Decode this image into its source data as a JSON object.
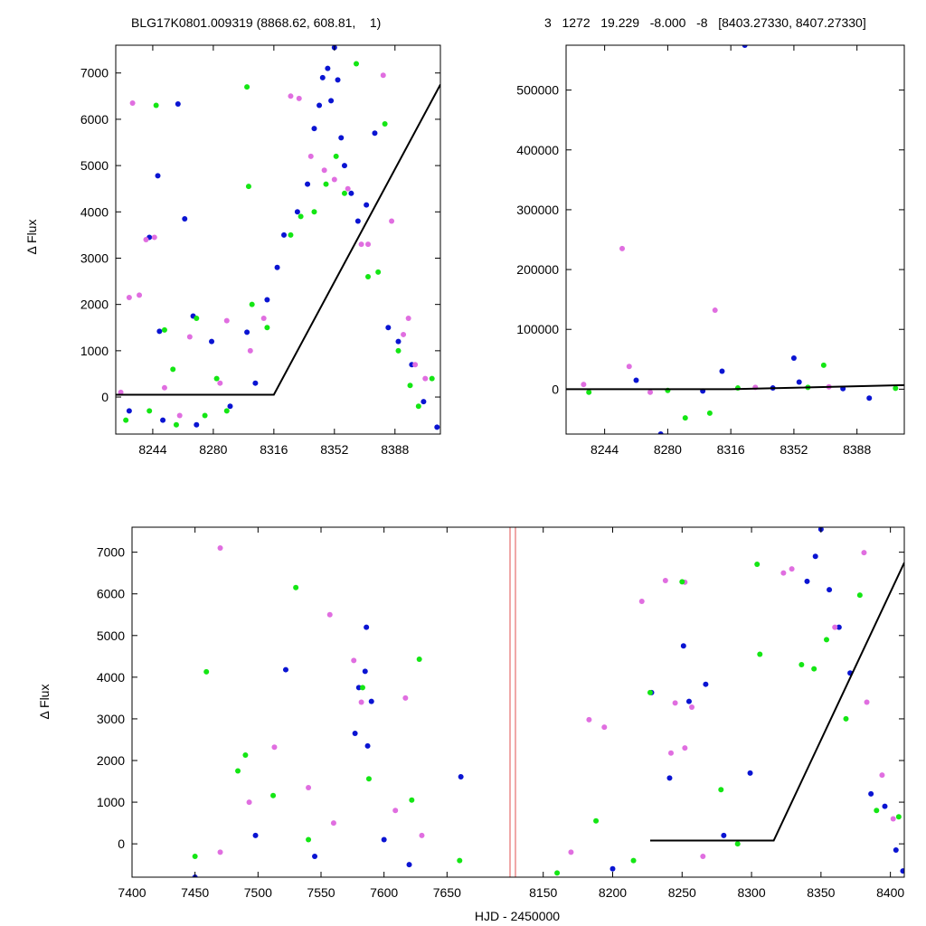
{
  "header": {
    "left": "BLG17K0801.009319 (8868.62, 608.81,    1)",
    "right": "3   1272   19.229   -8.000   -8   [8403.27330, 8407.27330]"
  },
  "colors": {
    "blue": "#0a14d2",
    "magenta": "#e06ee0",
    "green": "#14e614",
    "model": "#000000",
    "gap": "#e05050"
  },
  "chart_data": [
    {
      "type": "scatter",
      "ylabel": "Δ Flux",
      "xlim": [
        8222,
        8415
      ],
      "ylim": [
        -800,
        7600
      ],
      "xticks": [
        8244,
        8280,
        8316,
        8352,
        8388
      ],
      "yticks": [
        0,
        1000,
        2000,
        3000,
        4000,
        5000,
        6000,
        7000
      ],
      "model": [
        [
          8222,
          50
        ],
        [
          8316,
          50
        ],
        [
          8415,
          6750
        ]
      ],
      "series": [
        {
          "color": "blue",
          "points": [
            [
              8242,
              3450
            ],
            [
              8247,
              4780
            ],
            [
              8259,
              6330
            ],
            [
              8263,
              3850
            ],
            [
              8248,
              1420
            ],
            [
              8268,
              1750
            ],
            [
              8279,
              1200
            ],
            [
              8300,
              1400
            ],
            [
              8312,
              2100
            ],
            [
              8318,
              2800
            ],
            [
              8322,
              3500
            ],
            [
              8330,
              4000
            ],
            [
              8336,
              4600
            ],
            [
              8340,
              5800
            ],
            [
              8343,
              6300
            ],
            [
              8345,
              6900
            ],
            [
              8348,
              7100
            ],
            [
              8350,
              6400
            ],
            [
              8352,
              7550
            ],
            [
              8354,
              6850
            ],
            [
              8356,
              5600
            ],
            [
              8358,
              5000
            ],
            [
              8362,
              4400
            ],
            [
              8366,
              3800
            ],
            [
              8371,
              4150
            ],
            [
              8376,
              5700
            ],
            [
              8384,
              1500
            ],
            [
              8390,
              1200
            ],
            [
              8398,
              700
            ],
            [
              8405,
              -100
            ],
            [
              8413,
              -650
            ],
            [
              8230,
              -300
            ],
            [
              8250,
              -500
            ],
            [
              8270,
              -600
            ],
            [
              8290,
              -200
            ],
            [
              8305,
              300
            ]
          ]
        },
        {
          "color": "magenta",
          "points": [
            [
              8232,
              6350
            ],
            [
              8240,
              3400
            ],
            [
              8236,
              2200
            ],
            [
              8230,
              2150
            ],
            [
              8245,
              3450
            ],
            [
              8251,
              200
            ],
            [
              8266,
              1300
            ],
            [
              8288,
              1650
            ],
            [
              8302,
              1000
            ],
            [
              8310,
              1700
            ],
            [
              8326,
              6500
            ],
            [
              8331,
              6450
            ],
            [
              8338,
              5200
            ],
            [
              8346,
              4900
            ],
            [
              8352,
              4700
            ],
            [
              8360,
              4500
            ],
            [
              8368,
              3300
            ],
            [
              8381,
              6950
            ],
            [
              8372,
              3300
            ],
            [
              8386,
              3800
            ],
            [
              8393,
              1350
            ],
            [
              8396,
              1700
            ],
            [
              8400,
              700
            ],
            [
              8406,
              400
            ],
            [
              8225,
              100
            ],
            [
              8260,
              -400
            ],
            [
              8284,
              300
            ]
          ]
        },
        {
          "color": "green",
          "points": [
            [
              8246,
              6300
            ],
            [
              8251,
              1450
            ],
            [
              8256,
              600
            ],
            [
              8270,
              1700
            ],
            [
              8282,
              400
            ],
            [
              8300,
              6700
            ],
            [
              8301,
              4550
            ],
            [
              8303,
              2000
            ],
            [
              8312,
              1500
            ],
            [
              8326,
              3500
            ],
            [
              8332,
              3900
            ],
            [
              8340,
              4000
            ],
            [
              8347,
              4600
            ],
            [
              8353,
              5200
            ],
            [
              8358,
              4400
            ],
            [
              8365,
              7200
            ],
            [
              8372,
              2600
            ],
            [
              8378,
              2700
            ],
            [
              8382,
              5900
            ],
            [
              8390,
              1000
            ],
            [
              8397,
              250
            ],
            [
              8402,
              -200
            ],
            [
              8410,
              400
            ],
            [
              8228,
              -500
            ],
            [
              8242,
              -300
            ],
            [
              8258,
              -600
            ],
            [
              8275,
              -400
            ],
            [
              8288,
              -300
            ]
          ]
        }
      ]
    },
    {
      "type": "scatter",
      "xlim": [
        8222,
        8415
      ],
      "ylim": [
        -75000,
        575000
      ],
      "xticks": [
        8244,
        8280,
        8316,
        8352,
        8388
      ],
      "yticks": [
        0,
        100000,
        200000,
        300000,
        400000,
        500000
      ],
      "model": [
        [
          8222,
          0
        ],
        [
          8316,
          0
        ],
        [
          8415,
          6750
        ]
      ],
      "series": [
        {
          "color": "blue",
          "points": [
            [
              8324,
              575000
            ],
            [
              8262,
              15000
            ],
            [
              8276,
              -75000
            ],
            [
              8311,
              30000
            ],
            [
              8352,
              52000
            ],
            [
              8355,
              12000
            ],
            [
              8395,
              -15000
            ],
            [
              8300,
              -3000
            ],
            [
              8340,
              2000
            ],
            [
              8380,
              1000
            ]
          ]
        },
        {
          "color": "magenta",
          "points": [
            [
              8254,
              235000
            ],
            [
              8307,
              132000
            ],
            [
              8258,
              38000
            ],
            [
              8232,
              8000
            ],
            [
              8270,
              -5000
            ],
            [
              8330,
              3000
            ],
            [
              8372,
              4000
            ]
          ]
        },
        {
          "color": "green",
          "points": [
            [
              8290,
              -48000
            ],
            [
              8304,
              -40000
            ],
            [
              8369,
              40000
            ],
            [
              8235,
              -5000
            ],
            [
              8320,
              2000
            ],
            [
              8360,
              3000
            ],
            [
              8410,
              1500
            ],
            [
              8280,
              -2000
            ]
          ]
        }
      ]
    },
    {
      "type": "scatter",
      "xlabel": "HJD - 2450000",
      "ylabel": "Δ Flux",
      "ylim": [
        -800,
        7600
      ],
      "yticks": [
        0,
        1000,
        2000,
        3000,
        4000,
        5000,
        6000,
        7000
      ],
      "segments": [
        {
          "xlim": [
            7400,
            7700
          ],
          "xticks": [
            7400,
            7450,
            7500,
            7550,
            7600,
            7650
          ]
        },
        {
          "xlim": [
            8130,
            8410
          ],
          "xticks": [
            8150,
            8200,
            8250,
            8300,
            8350,
            8400
          ]
        }
      ],
      "model": [
        [
          8227,
          80
        ],
        [
          8316,
          80
        ],
        [
          8410,
          6750
        ]
      ],
      "series": [
        {
          "color": "blue",
          "points": [
            [
              7522,
              4180
            ],
            [
              7586,
              5200
            ],
            [
              7585,
              4140
            ],
            [
              7580,
              3750
            ],
            [
              7577,
              2650
            ],
            [
              7587,
              2350
            ],
            [
              7590,
              3420
            ],
            [
              7661,
              1610
            ],
            [
              7498,
              200
            ],
            [
              7545,
              -300
            ],
            [
              7600,
              100
            ],
            [
              7450,
              -800
            ],
            [
              7620,
              -500
            ],
            [
              8228,
              3630
            ],
            [
              8251,
              4750
            ],
            [
              8255,
              3420
            ],
            [
              8267,
              3830
            ],
            [
              8241,
              1580
            ],
            [
              8299,
              1700
            ],
            [
              8340,
              6300
            ],
            [
              8346,
              6900
            ],
            [
              8350,
              7550
            ],
            [
              8356,
              6100
            ],
            [
              8363,
              5200
            ],
            [
              8371,
              4100
            ],
            [
              8386,
              1200
            ],
            [
              8396,
              900
            ],
            [
              8404,
              -150
            ],
            [
              8409,
              -650
            ],
            [
              8200,
              -600
            ],
            [
              8280,
              200
            ]
          ]
        },
        {
          "color": "magenta",
          "points": [
            [
              7470,
              7100
            ],
            [
              7557,
              5500
            ],
            [
              7576,
              4400
            ],
            [
              7582,
              3400
            ],
            [
              7617,
              3500
            ],
            [
              7513,
              2320
            ],
            [
              7493,
              1000
            ],
            [
              7540,
              1350
            ],
            [
              7609,
              800
            ],
            [
              7470,
              -200
            ],
            [
              7560,
              500
            ],
            [
              7630,
              200
            ],
            [
              8221,
              5820
            ],
            [
              8238,
              6320
            ],
            [
              8252,
              6280
            ],
            [
              8245,
              3380
            ],
            [
              8257,
              3280
            ],
            [
              8242,
              2180
            ],
            [
              8252,
              2300
            ],
            [
              8183,
              2980
            ],
            [
              8194,
              2800
            ],
            [
              8323,
              6500
            ],
            [
              8329,
              6600
            ],
            [
              8360,
              5200
            ],
            [
              8381,
              6990
            ],
            [
              8383,
              3400
            ],
            [
              8394,
              1650
            ],
            [
              8402,
              600
            ],
            [
              8170,
              -200
            ],
            [
              8265,
              -300
            ]
          ]
        },
        {
          "color": "green",
          "points": [
            [
              7459,
              4130
            ],
            [
              7530,
              6150
            ],
            [
              7583,
              3750
            ],
            [
              7628,
              4430
            ],
            [
              7490,
              2130
            ],
            [
              7484,
              1750
            ],
            [
              7512,
              1160
            ],
            [
              7588,
              1560
            ],
            [
              7622,
              1050
            ],
            [
              7450,
              -300
            ],
            [
              7540,
              100
            ],
            [
              7660,
              -400
            ],
            [
              8250,
              6290
            ],
            [
              8304,
              6710
            ],
            [
              8306,
              4550
            ],
            [
              8227,
              3630
            ],
            [
              8188,
              550
            ],
            [
              8278,
              1300
            ],
            [
              8336,
              4300
            ],
            [
              8345,
              4200
            ],
            [
              8354,
              4900
            ],
            [
              8368,
              3000
            ],
            [
              8378,
              5970
            ],
            [
              8390,
              800
            ],
            [
              8406,
              650
            ],
            [
              8160,
              -700
            ],
            [
              8215,
              -400
            ],
            [
              8290,
              0
            ]
          ]
        }
      ]
    }
  ]
}
